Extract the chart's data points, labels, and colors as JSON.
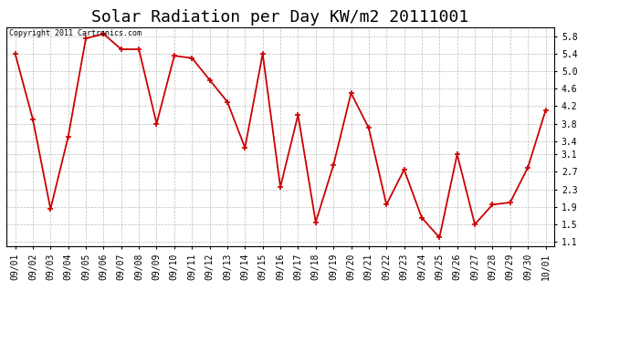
{
  "title": "Solar Radiation per Day KW/m2 20111001",
  "copyright_text": "Copyright 2011 Cartronics.com",
  "dates": [
    "09/01",
    "09/02",
    "09/03",
    "09/04",
    "09/05",
    "09/06",
    "09/07",
    "09/08",
    "09/09",
    "09/10",
    "09/11",
    "09/12",
    "09/13",
    "09/14",
    "09/15",
    "09/16",
    "09/17",
    "09/18",
    "09/19",
    "09/20",
    "09/21",
    "09/22",
    "09/23",
    "09/24",
    "09/25",
    "09/26",
    "09/27",
    "09/28",
    "09/29",
    "09/30",
    "10/01"
  ],
  "values": [
    5.4,
    3.9,
    1.85,
    3.5,
    5.75,
    5.85,
    5.5,
    5.5,
    3.8,
    5.35,
    5.3,
    4.8,
    4.3,
    3.25,
    5.4,
    2.35,
    4.0,
    1.55,
    2.85,
    4.5,
    3.7,
    1.95,
    2.75,
    1.65,
    1.2,
    3.1,
    1.5,
    1.95,
    2.0,
    2.8,
    4.1
  ],
  "line_color": "#cc0000",
  "marker": "+",
  "markersize": 5,
  "markeredgewidth": 1.2,
  "linewidth": 1.3,
  "ylim": [
    1.0,
    6.0
  ],
  "yticks": [
    1.1,
    1.5,
    1.9,
    2.3,
    2.7,
    3.1,
    3.4,
    3.8,
    4.2,
    4.6,
    5.0,
    5.4,
    5.8
  ],
  "ytick_labels": [
    "1.1",
    "1.5",
    "1.9",
    "2.3",
    "2.7",
    "3.1",
    "3.4",
    "3.8",
    "4.2",
    "4.6",
    "5.0",
    "5.4",
    "5.8"
  ],
  "background_color": "#ffffff",
  "grid_color": "#bbbbbb",
  "title_fontsize": 13,
  "tick_fontsize": 7,
  "copyright_fontsize": 6
}
